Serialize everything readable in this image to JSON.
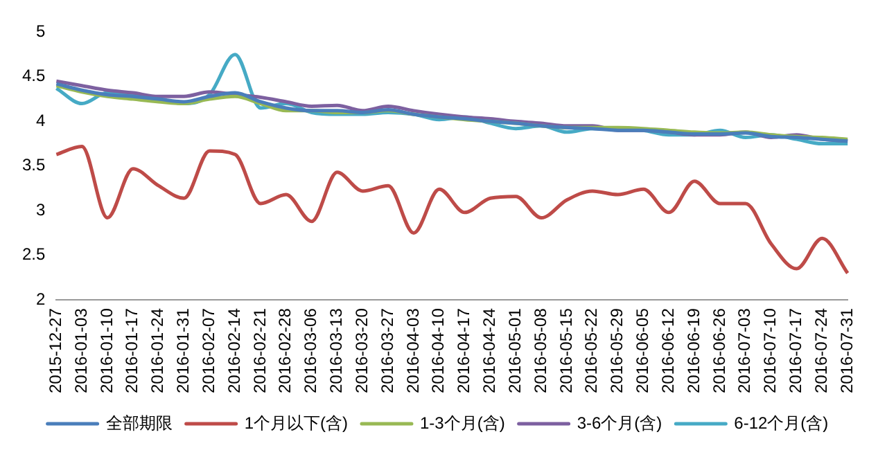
{
  "chart_data": {
    "type": "line",
    "categories": [
      "2015-12-27",
      "2016-01-03",
      "2016-01-10",
      "2016-01-17",
      "2016-01-24",
      "2016-01-31",
      "2016-02-07",
      "2016-02-14",
      "2016-02-21",
      "2016-02-28",
      "2016-03-06",
      "2016-03-13",
      "2016-03-20",
      "2016-03-27",
      "2016-04-03",
      "2016-04-10",
      "2016-04-17",
      "2016-04-24",
      "2016-05-01",
      "2016-05-08",
      "2016-05-15",
      "2016-05-22",
      "2016-05-29",
      "2016-06-05",
      "2016-06-12",
      "2016-06-19",
      "2016-06-26",
      "2016-07-03",
      "2016-07-10",
      "2016-07-17",
      "2016-07-24",
      "2016-07-31"
    ],
    "series": [
      {
        "name": "全部期限",
        "color": "#4a7ebb",
        "values": [
          4.42,
          4.35,
          4.3,
          4.28,
          4.25,
          4.22,
          4.28,
          4.32,
          4.22,
          4.15,
          4.12,
          4.12,
          4.1,
          4.13,
          4.08,
          4.05,
          4.03,
          4.0,
          3.98,
          3.95,
          3.93,
          3.92,
          3.9,
          3.9,
          3.88,
          3.86,
          3.86,
          3.87,
          3.83,
          3.82,
          3.8,
          3.78
        ]
      },
      {
        "name": "1个月以下(含)",
        "color": "#be4b48",
        "values": [
          3.63,
          3.72,
          2.92,
          3.47,
          3.28,
          3.14,
          3.67,
          3.63,
          3.08,
          3.18,
          2.88,
          3.43,
          3.22,
          3.28,
          2.75,
          3.24,
          2.98,
          3.14,
          3.16,
          2.92,
          3.12,
          3.22,
          3.18,
          3.24,
          2.98,
          3.33,
          3.08,
          3.08,
          2.63,
          2.35,
          2.69,
          2.3
        ]
      },
      {
        "name": "1-3个月(含)",
        "color": "#98b954",
        "values": [
          4.4,
          4.33,
          4.28,
          4.25,
          4.22,
          4.2,
          4.25,
          4.28,
          4.2,
          4.12,
          4.12,
          4.1,
          4.1,
          4.12,
          4.08,
          4.05,
          4.02,
          4.0,
          3.98,
          3.95,
          3.93,
          3.93,
          3.93,
          3.92,
          3.9,
          3.88,
          3.87,
          3.88,
          3.85,
          3.83,
          3.82,
          3.8
        ]
      },
      {
        "name": "3-6个月(含)",
        "color": "#7d60a0",
        "values": [
          4.45,
          4.4,
          4.35,
          4.32,
          4.28,
          4.28,
          4.33,
          4.3,
          4.27,
          4.22,
          4.17,
          4.18,
          4.12,
          4.17,
          4.12,
          4.08,
          4.05,
          4.03,
          4.0,
          3.98,
          3.95,
          3.95,
          3.9,
          3.9,
          3.88,
          3.85,
          3.85,
          3.88,
          3.82,
          3.85,
          3.8,
          3.78
        ]
      },
      {
        "name": "6-12个月(含)",
        "color": "#46aac5",
        "values": [
          4.37,
          4.2,
          4.32,
          4.3,
          4.25,
          4.2,
          4.3,
          4.75,
          4.15,
          4.2,
          4.1,
          4.08,
          4.08,
          4.1,
          4.08,
          4.02,
          4.05,
          3.98,
          3.92,
          3.95,
          3.88,
          3.92,
          3.92,
          3.9,
          3.85,
          3.85,
          3.9,
          3.82,
          3.85,
          3.8,
          3.75,
          3.75
        ]
      }
    ],
    "ylim": [
      2,
      5
    ],
    "yticks": [
      2,
      2.5,
      3,
      3.5,
      4,
      4.5,
      5
    ],
    "grid": false,
    "legend": "bottom",
    "marker": "none",
    "line_style": "solid"
  }
}
